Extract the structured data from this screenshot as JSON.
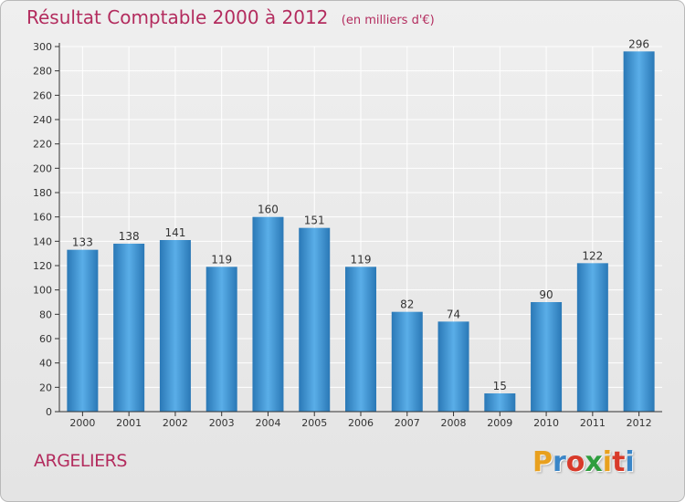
{
  "title": {
    "main": "Résultat Comptable 2000 à 2012",
    "sub": "(en milliers d'€)"
  },
  "commune": "ARGELIERS",
  "logo": {
    "letters": [
      "P",
      "r",
      "o",
      "x",
      "i",
      "t",
      "i"
    ],
    "colors": [
      "#e8a01e",
      "#3a86c8",
      "#d83a2a",
      "#2e9e3e",
      "#e8a01e",
      "#d83a2a",
      "#3a86c8"
    ]
  },
  "colors": {
    "bar_light": "#5aaee8",
    "bar_dark": "#2a78b6",
    "grid": "#ffffff",
    "axis": "#333333",
    "title": "#b32c5e"
  },
  "chart_data": {
    "type": "bar",
    "title": "Résultat Comptable 2000 à 2012",
    "subtitle": "(en milliers d'€)",
    "xlabel": "",
    "ylabel": "",
    "categories": [
      "2000",
      "2001",
      "2002",
      "2003",
      "2004",
      "2005",
      "2006",
      "2007",
      "2008",
      "2009",
      "2010",
      "2011",
      "2012"
    ],
    "values": [
      133,
      138,
      141,
      119,
      160,
      151,
      119,
      82,
      74,
      15,
      90,
      122,
      296
    ],
    "ylim": [
      0,
      300
    ],
    "yticks": [
      0,
      20,
      40,
      60,
      80,
      100,
      120,
      140,
      160,
      180,
      200,
      220,
      240,
      260,
      280,
      300
    ],
    "grid": true,
    "data_labels": true
  }
}
